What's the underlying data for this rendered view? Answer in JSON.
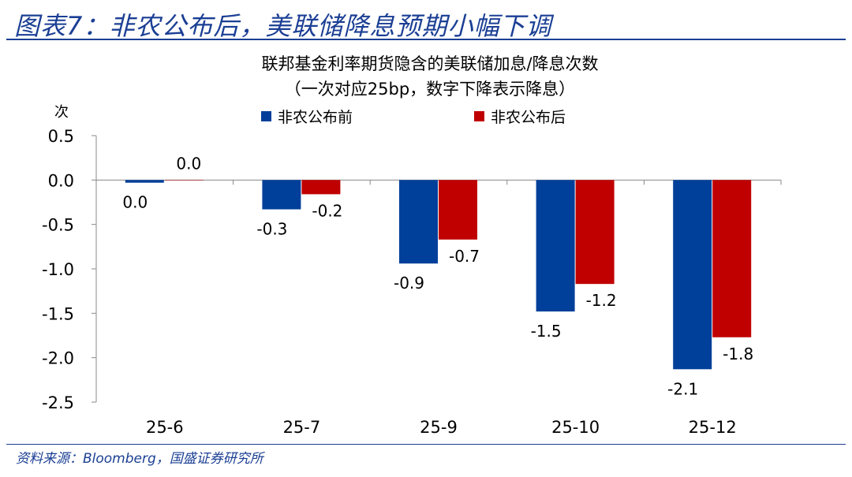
{
  "header": {
    "title": "图表7：非农公布后，美联储降息预期小幅下调"
  },
  "source": "资料来源：Bloomberg，国盛证券研究所",
  "colors": {
    "brand": "#1b3f94",
    "before": "#003f9a",
    "after": "#c00000"
  },
  "chart_data": {
    "type": "bar",
    "title": "联邦基金利率期货隐含的美联储加息/降息次数",
    "subtitle": "（一次对应25bp，数字下降表示降息）",
    "ylabel": "次",
    "xlabel": "",
    "ylim": [
      -2.5,
      0.5
    ],
    "yticks": [
      "0.5",
      "0.0",
      "-0.5",
      "-1.0",
      "-1.5",
      "-2.0",
      "-2.5"
    ],
    "ytick_values": [
      0.5,
      0.0,
      -0.5,
      -1.0,
      -1.5,
      -2.0,
      -2.5
    ],
    "categories": [
      "25-6",
      "25-7",
      "25-9",
      "25-10",
      "25-12"
    ],
    "legend_position": "top",
    "series": [
      {
        "name": "非农公布前",
        "values": [
          -0.03,
          -0.33,
          -0.94,
          -1.48,
          -2.13
        ],
        "labels": [
          "0.0",
          "-0.3",
          "-0.9",
          "-1.5",
          "-2.1"
        ]
      },
      {
        "name": "非农公布后",
        "values": [
          0.0,
          -0.16,
          -0.67,
          -1.17,
          -1.77
        ],
        "labels": [
          "0.0",
          "-0.2",
          "-0.7",
          "-1.2",
          "-1.8"
        ]
      }
    ]
  }
}
